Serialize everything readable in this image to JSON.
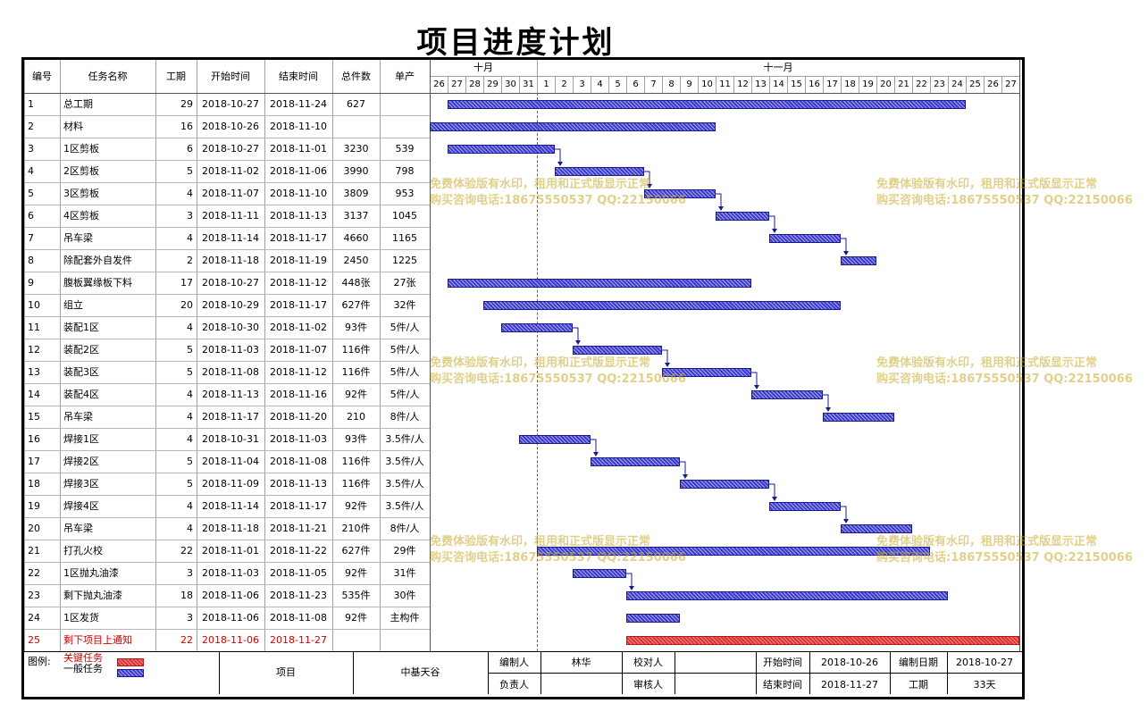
{
  "title": "项目进度计划",
  "columns": [
    "编号",
    "任务名称",
    "工期",
    "开始时间",
    "结束时间",
    "总件数",
    "单产"
  ],
  "months": [
    {
      "label": "十月",
      "start": "2018-10-26",
      "end": "2018-10-31"
    },
    {
      "label": "十一月",
      "start": "2018-11-01",
      "end": "2018-11-27"
    }
  ],
  "timeline": {
    "start": "2018-10-26",
    "end": "2018-11-27",
    "days": [
      "26",
      "27",
      "28",
      "29",
      "30",
      "31",
      "1",
      "2",
      "3",
      "4",
      "5",
      "6",
      "7",
      "8",
      "9",
      "10",
      "11",
      "12",
      "13",
      "14",
      "15",
      "16",
      "17",
      "18",
      "19",
      "20",
      "21",
      "22",
      "23",
      "24",
      "25",
      "26",
      "27"
    ]
  },
  "colors": {
    "general": "#3a3ad0",
    "critical": "#e03030",
    "critical_text": "#cc0000"
  },
  "chart_data": {
    "type": "gantt",
    "x_axis": "date",
    "tasks": [
      {
        "id": "1",
        "name": "总工期",
        "days": "29",
        "start": "2018-10-27",
        "end": "2018-11-24",
        "total": "627",
        "unit": "",
        "critical": false
      },
      {
        "id": "2",
        "name": "材料",
        "days": "16",
        "start": "2018-10-26",
        "end": "2018-11-10",
        "total": "",
        "unit": "",
        "critical": false
      },
      {
        "id": "3",
        "name": "1区剪板",
        "days": "6",
        "start": "2018-10-27",
        "end": "2018-11-01",
        "total": "3230",
        "unit": "539",
        "critical": false
      },
      {
        "id": "4",
        "name": "2区剪板",
        "days": "5",
        "start": "2018-11-02",
        "end": "2018-11-06",
        "total": "3990",
        "unit": "798",
        "critical": false
      },
      {
        "id": "5",
        "name": "3区剪板",
        "days": "4",
        "start": "2018-11-07",
        "end": "2018-11-10",
        "total": "3809",
        "unit": "953",
        "critical": false
      },
      {
        "id": "6",
        "name": "4区剪板",
        "days": "3",
        "start": "2018-11-11",
        "end": "2018-11-13",
        "total": "3137",
        "unit": "1045",
        "critical": false
      },
      {
        "id": "7",
        "name": "吊车梁",
        "days": "4",
        "start": "2018-11-14",
        "end": "2018-11-17",
        "total": "4660",
        "unit": "1165",
        "critical": false
      },
      {
        "id": "8",
        "name": "除配套外自发件",
        "days": "2",
        "start": "2018-11-18",
        "end": "2018-11-19",
        "total": "2450",
        "unit": "1225",
        "critical": false
      },
      {
        "id": "9",
        "name": "腹板翼缘板下料",
        "days": "17",
        "start": "2018-10-27",
        "end": "2018-11-12",
        "total": "448张",
        "unit": "27张",
        "critical": false
      },
      {
        "id": "10",
        "name": "组立",
        "days": "20",
        "start": "2018-10-29",
        "end": "2018-11-17",
        "total": "627件",
        "unit": "32件",
        "critical": false
      },
      {
        "id": "11",
        "name": "装配1区",
        "days": "4",
        "start": "2018-10-30",
        "end": "2018-11-02",
        "total": "93件",
        "unit": "5件/人",
        "critical": false
      },
      {
        "id": "12",
        "name": "装配2区",
        "days": "5",
        "start": "2018-11-03",
        "end": "2018-11-07",
        "total": "116件",
        "unit": "5件/人",
        "critical": false
      },
      {
        "id": "13",
        "name": "装配3区",
        "days": "5",
        "start": "2018-11-08",
        "end": "2018-11-12",
        "total": "116件",
        "unit": "5件/人",
        "critical": false
      },
      {
        "id": "14",
        "name": "装配4区",
        "days": "4",
        "start": "2018-11-13",
        "end": "2018-11-16",
        "total": "92件",
        "unit": "5件/人",
        "critical": false
      },
      {
        "id": "15",
        "name": "吊车梁",
        "days": "4",
        "start": "2018-11-17",
        "end": "2018-11-20",
        "total": "210",
        "unit": "8件/人",
        "critical": false
      },
      {
        "id": "16",
        "name": "焊接1区",
        "days": "4",
        "start": "2018-10-31",
        "end": "2018-11-03",
        "total": "93件",
        "unit": "3.5件/人",
        "critical": false
      },
      {
        "id": "17",
        "name": "焊接2区",
        "days": "5",
        "start": "2018-11-04",
        "end": "2018-11-08",
        "total": "116件",
        "unit": "3.5件/人",
        "critical": false
      },
      {
        "id": "18",
        "name": "焊接3区",
        "days": "5",
        "start": "2018-11-09",
        "end": "2018-11-13",
        "total": "116件",
        "unit": "3.5件/人",
        "critical": false
      },
      {
        "id": "19",
        "name": "焊接4区",
        "days": "4",
        "start": "2018-11-14",
        "end": "2018-11-17",
        "total": "92件",
        "unit": "3.5件/人",
        "critical": false
      },
      {
        "id": "20",
        "name": "吊车梁",
        "days": "4",
        "start": "2018-11-18",
        "end": "2018-11-21",
        "total": "210件",
        "unit": "8件/人",
        "critical": false
      },
      {
        "id": "21",
        "name": "打孔火校",
        "days": "22",
        "start": "2018-11-01",
        "end": "2018-11-22",
        "total": "627件",
        "unit": "29件",
        "critical": false
      },
      {
        "id": "22",
        "name": "1区抛丸油漆",
        "days": "3",
        "start": "2018-11-03",
        "end": "2018-11-05",
        "total": "92件",
        "unit": "31件",
        "critical": false
      },
      {
        "id": "23",
        "name": "剩下抛丸油漆",
        "days": "18",
        "start": "2018-11-06",
        "end": "2018-11-23",
        "total": "535件",
        "unit": "30件",
        "critical": false
      },
      {
        "id": "24",
        "name": "1区发货",
        "days": "3",
        "start": "2018-11-06",
        "end": "2018-11-08",
        "total": "92件",
        "unit": "主构件",
        "critical": false
      },
      {
        "id": "25",
        "name": "剩下项目上通知",
        "days": "22",
        "start": "2018-11-06",
        "end": "2018-11-27",
        "total": "",
        "unit": "",
        "critical": true
      }
    ],
    "links": [
      [
        3,
        4
      ],
      [
        4,
        5
      ],
      [
        5,
        6
      ],
      [
        6,
        7
      ],
      [
        7,
        8
      ],
      [
        11,
        12
      ],
      [
        12,
        13
      ],
      [
        13,
        14
      ],
      [
        14,
        15
      ],
      [
        16,
        17
      ],
      [
        17,
        18
      ],
      [
        18,
        19
      ],
      [
        19,
        20
      ],
      [
        22,
        23
      ]
    ]
  },
  "watermark": {
    "line1": "免费体验版有水印，租用和正式版显示正常",
    "line2": "购买咨询电话:18675550537 QQ:22150066"
  },
  "legend": {
    "label": "图例:",
    "critical": "关键任务",
    "general": "一般任务"
  },
  "footer": {
    "project_label": "项目",
    "project_value": "中基天谷",
    "editor_label": "编制人",
    "editor_value": "林华",
    "checker_label": "校对人",
    "checker_value": "",
    "owner_label": "负责人",
    "owner_value": "",
    "reviewer_label": "审核人",
    "reviewer_value": "",
    "start_label": "开始时间",
    "start_value": "2018-10-26",
    "end_label": "结束时间",
    "end_value": "2018-11-27",
    "date_label": "编制日期",
    "date_value": "2018-10-27",
    "duration_label": "工期",
    "duration_value": "33天"
  }
}
